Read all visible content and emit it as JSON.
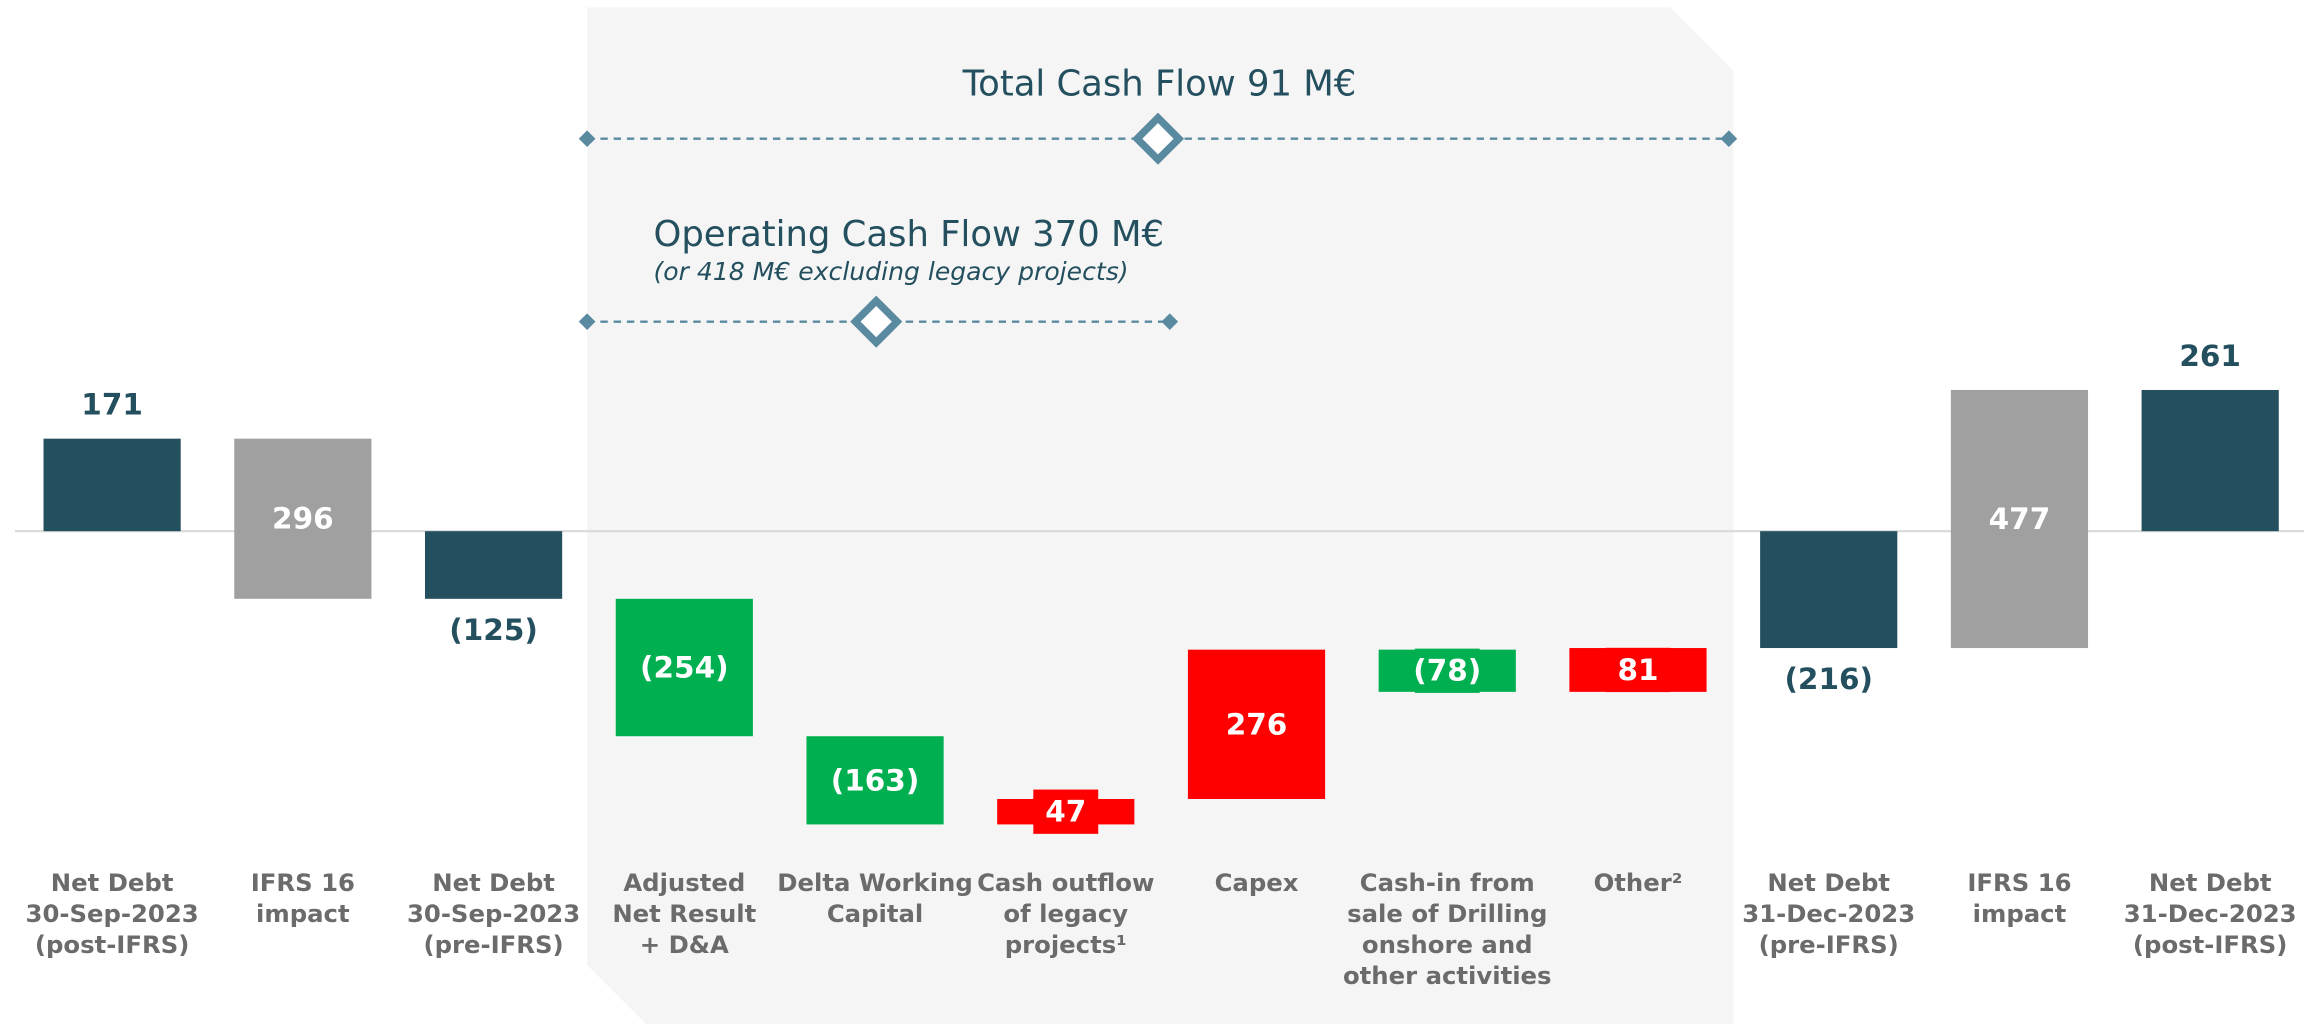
{
  "chart_data": {
    "type": "waterfall",
    "categories": [
      "Net Debt\n30-Sep-2023\n(post-IFRS)",
      "IFRS 16\nimpact",
      "Net Debt\n30-Sep-2023\n(pre-IFRS)",
      "Adjusted\nNet Result\n+ D&A",
      "Delta Working\nCapital",
      "Cash outflow\nof legacy\nprojects¹",
      "Capex",
      "Cash-in from\nsale of Drilling\nonshore and\nother activities",
      "Other²",
      "Net Debt\n31-Dec-2023\n(pre-IFRS)",
      "IFRS 16\nimpact",
      "Net Debt\n31-Dec-2023\n(post-IFRS)"
    ],
    "measure": [
      "total",
      "relative",
      "total",
      "relative",
      "relative",
      "relative",
      "relative",
      "relative",
      "relative",
      "total",
      "relative",
      "total"
    ],
    "values": [
      171,
      -296,
      -125,
      -254,
      -163,
      47,
      276,
      -78,
      81,
      -216,
      477,
      261
    ],
    "value_labels": [
      "171",
      "296",
      "(125)",
      "(254)",
      "(163)",
      "47",
      "276",
      "(78)",
      "81",
      "(216)",
      "477",
      "261"
    ],
    "colors": [
      "#234f5e",
      "#a0a0a0",
      "#234f5e",
      "#00b050",
      "#00b050",
      "#ff0000",
      "#ff0000",
      "#00b050",
      "#ff0000",
      "#234f5e",
      "#a0a0a0",
      "#234f5e"
    ],
    "ylim": [
      -600,
      300
    ],
    "annotations": [
      "Total Cash Flow 91 M€",
      "Operating Cash Flow 370 M€",
      "(or 418 M€ excluding legacy projects)"
    ]
  }
}
